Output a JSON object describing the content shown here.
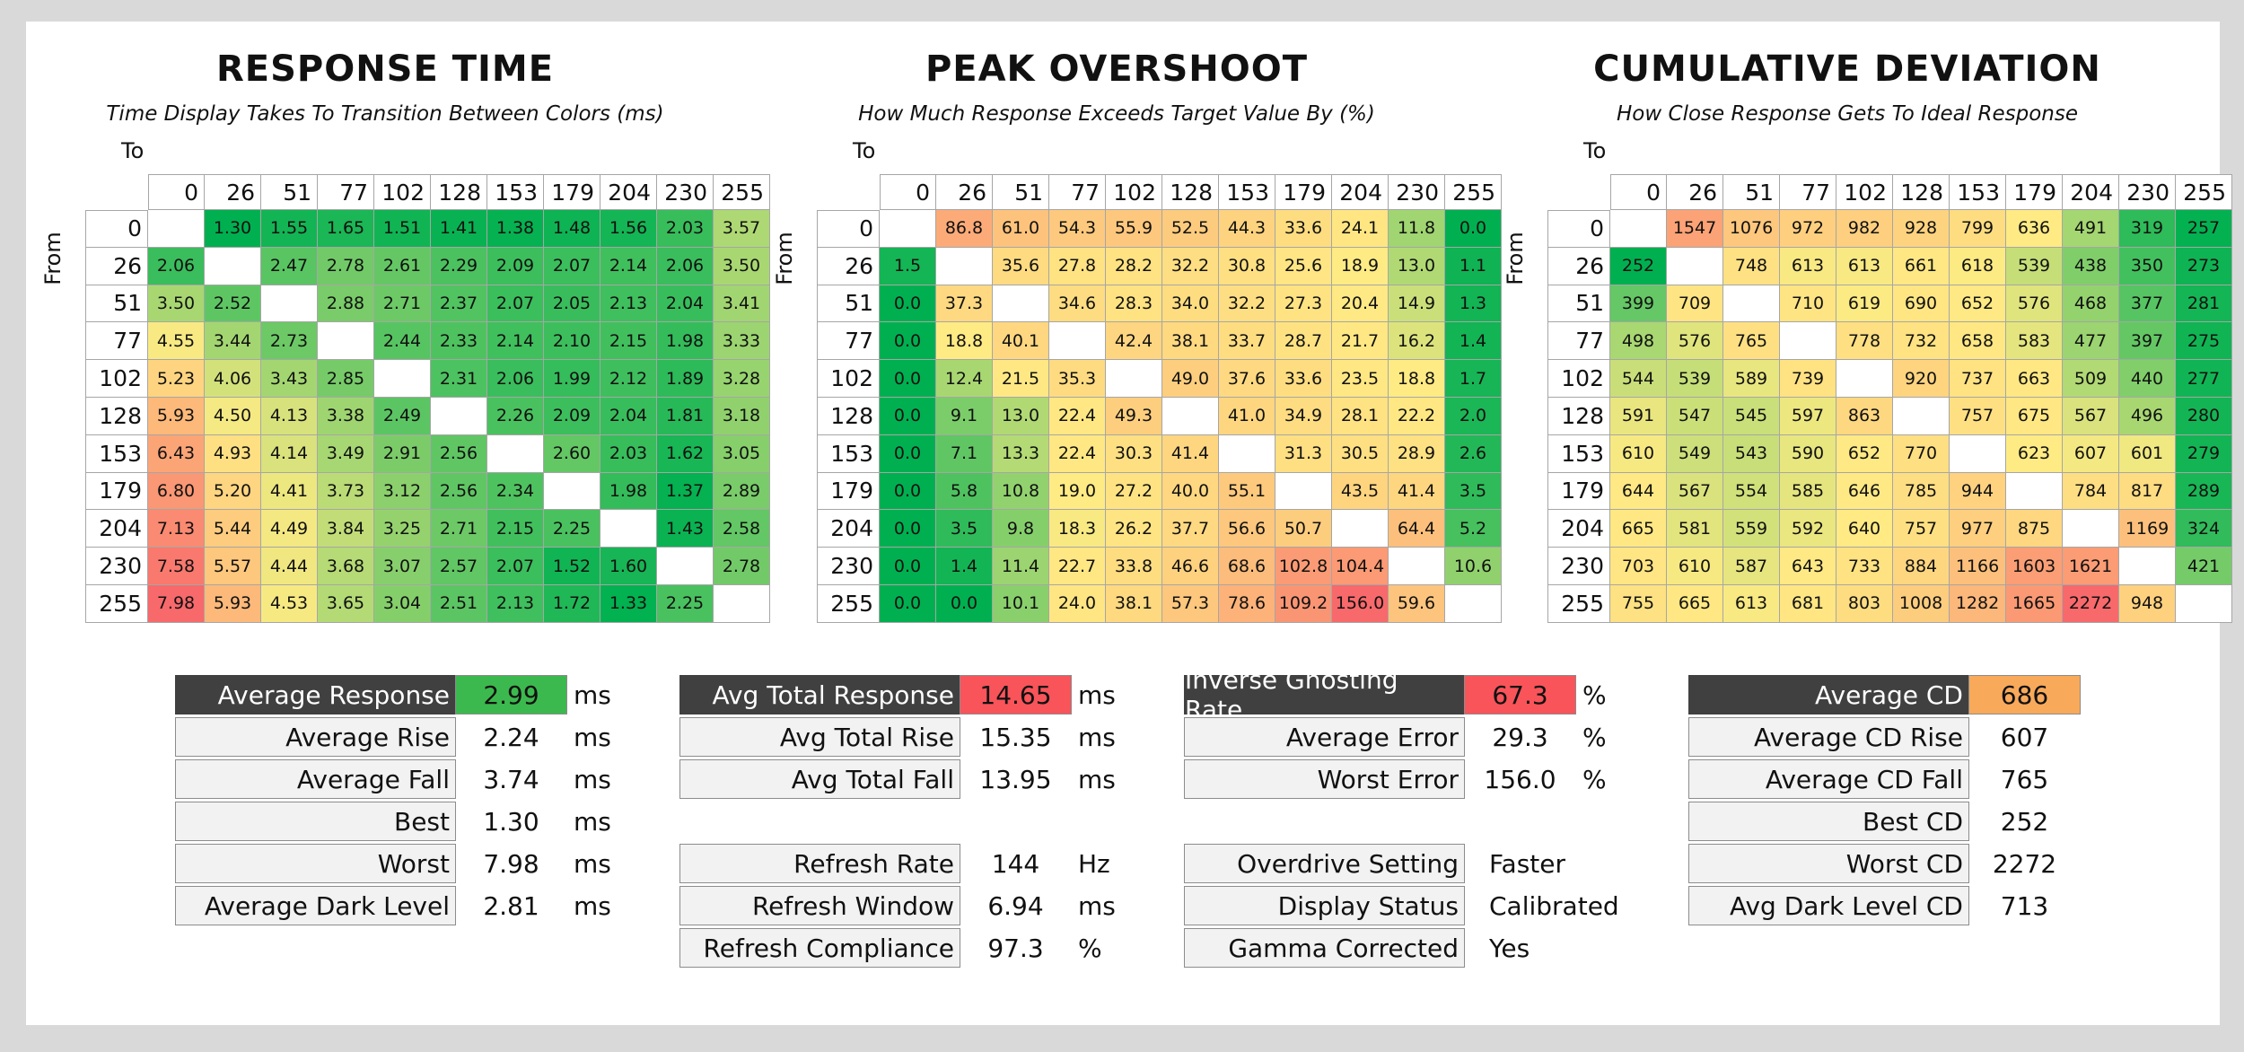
{
  "panels": [
    {
      "title": "RESPONSE TIME",
      "subtitle": "Time Display Takes To Transition Between Colors (ms)",
      "to_label": "To",
      "from_label": "From"
    },
    {
      "title": "PEAK OVERSHOOT",
      "subtitle": "How Much Response Exceeds Target Value By (%)",
      "to_label": "To",
      "from_label": "From"
    },
    {
      "title": "CUMULATIVE DEVIATION",
      "subtitle": "How Close Response Gets To Ideal Response",
      "to_label": "To",
      "from_label": "From"
    }
  ],
  "chart_data": [
    {
      "type": "heatmap",
      "title": "RESPONSE TIME",
      "subtitle": "Time Display Takes To Transition Between Colors (ms)",
      "xlabel": "To",
      "ylabel": "From",
      "x": [
        "0",
        "26",
        "51",
        "77",
        "102",
        "128",
        "153",
        "179",
        "204",
        "230",
        "255"
      ],
      "y": [
        "0",
        "26",
        "51",
        "77",
        "102",
        "128",
        "153",
        "179",
        "204",
        "230",
        "255"
      ],
      "values": [
        [
          null,
          "1.30",
          "1.55",
          "1.65",
          "1.51",
          "1.41",
          "1.38",
          "1.48",
          "1.56",
          "2.03",
          "3.57"
        ],
        [
          "2.06",
          null,
          "2.47",
          "2.78",
          "2.61",
          "2.29",
          "2.09",
          "2.07",
          "2.14",
          "2.06",
          "3.50"
        ],
        [
          "3.50",
          "2.52",
          null,
          "2.88",
          "2.71",
          "2.37",
          "2.07",
          "2.05",
          "2.13",
          "2.04",
          "3.41"
        ],
        [
          "4.55",
          "3.44",
          "2.73",
          null,
          "2.44",
          "2.33",
          "2.14",
          "2.10",
          "2.15",
          "1.98",
          "3.33"
        ],
        [
          "5.23",
          "4.06",
          "3.43",
          "2.85",
          null,
          "2.31",
          "2.06",
          "1.99",
          "2.12",
          "1.89",
          "3.28"
        ],
        [
          "5.93",
          "4.50",
          "4.13",
          "3.38",
          "2.49",
          null,
          "2.26",
          "2.09",
          "2.04",
          "1.81",
          "3.18"
        ],
        [
          "6.43",
          "4.93",
          "4.14",
          "3.49",
          "2.91",
          "2.56",
          null,
          "2.60",
          "2.03",
          "1.62",
          "3.05"
        ],
        [
          "6.80",
          "5.20",
          "4.41",
          "3.73",
          "3.12",
          "2.56",
          "2.34",
          null,
          "1.98",
          "1.37",
          "2.89"
        ],
        [
          "7.13",
          "5.44",
          "4.49",
          "3.84",
          "3.25",
          "2.71",
          "2.15",
          "2.25",
          null,
          "1.43",
          "2.58"
        ],
        [
          "7.58",
          "5.57",
          "4.44",
          "3.68",
          "3.07",
          "2.57",
          "2.07",
          "1.52",
          "1.60",
          null,
          "2.78"
        ],
        [
          "7.98",
          "5.93",
          "4.53",
          "3.65",
          "3.04",
          "2.51",
          "2.13",
          "1.72",
          "1.33",
          "2.25",
          null
        ]
      ],
      "colors": {
        "good": "#00b050",
        "mid": "#ffeb84",
        "bad": "#f8696b"
      }
    },
    {
      "type": "heatmap",
      "title": "PEAK OVERSHOOT",
      "subtitle": "How Much Response Exceeds Target Value By (%)",
      "xlabel": "To",
      "ylabel": "From",
      "x": [
        "0",
        "26",
        "51",
        "77",
        "102",
        "128",
        "153",
        "179",
        "204",
        "230",
        "255"
      ],
      "y": [
        "0",
        "26",
        "51",
        "77",
        "102",
        "128",
        "153",
        "179",
        "204",
        "230",
        "255"
      ],
      "values": [
        [
          null,
          "86.8",
          "61.0",
          "54.3",
          "55.9",
          "52.5",
          "44.3",
          "33.6",
          "24.1",
          "11.8",
          "0.0"
        ],
        [
          "1.5",
          null,
          "35.6",
          "27.8",
          "28.2",
          "32.2",
          "30.8",
          "25.6",
          "18.9",
          "13.0",
          "1.1"
        ],
        [
          "0.0",
          "37.3",
          null,
          "34.6",
          "28.3",
          "34.0",
          "32.2",
          "27.3",
          "20.4",
          "14.9",
          "1.3"
        ],
        [
          "0.0",
          "18.8",
          "40.1",
          null,
          "42.4",
          "38.1",
          "33.7",
          "28.7",
          "21.7",
          "16.2",
          "1.4"
        ],
        [
          "0.0",
          "12.4",
          "21.5",
          "35.3",
          null,
          "49.0",
          "37.6",
          "33.6",
          "23.5",
          "18.8",
          "1.7"
        ],
        [
          "0.0",
          "9.1",
          "13.0",
          "22.4",
          "49.3",
          null,
          "41.0",
          "34.9",
          "28.1",
          "22.2",
          "2.0"
        ],
        [
          "0.0",
          "7.1",
          "13.3",
          "22.4",
          "30.3",
          "41.4",
          null,
          "31.3",
          "30.5",
          "28.9",
          "2.6"
        ],
        [
          "0.0",
          "5.8",
          "10.8",
          "19.0",
          "27.2",
          "40.0",
          "55.1",
          null,
          "43.5",
          "41.4",
          "3.5"
        ],
        [
          "0.0",
          "3.5",
          "9.8",
          "18.3",
          "26.2",
          "37.7",
          "56.6",
          "50.7",
          null,
          "64.4",
          "5.2"
        ],
        [
          "0.0",
          "1.4",
          "11.4",
          "22.7",
          "33.8",
          "46.6",
          "68.6",
          "102.8",
          "104.4",
          null,
          "10.6"
        ],
        [
          "0.0",
          "0.0",
          "10.1",
          "24.0",
          "38.1",
          "57.3",
          "78.6",
          "109.2",
          "156.0",
          "59.6",
          null
        ]
      ],
      "colors": {
        "good": "#00b050",
        "mid": "#ffeb84",
        "bad": "#f8696b"
      }
    },
    {
      "type": "heatmap",
      "title": "CUMULATIVE DEVIATION",
      "subtitle": "How Close Response Gets To Ideal Response",
      "xlabel": "To",
      "ylabel": "From",
      "x": [
        "0",
        "26",
        "51",
        "77",
        "102",
        "128",
        "153",
        "179",
        "204",
        "230",
        "255"
      ],
      "y": [
        "0",
        "26",
        "51",
        "77",
        "102",
        "128",
        "153",
        "179",
        "204",
        "230",
        "255"
      ],
      "values": [
        [
          null,
          "1547",
          "1076",
          "972",
          "982",
          "928",
          "799",
          "636",
          "491",
          "319",
          "257"
        ],
        [
          "252",
          null,
          "748",
          "613",
          "613",
          "661",
          "618",
          "539",
          "438",
          "350",
          "273"
        ],
        [
          "399",
          "709",
          null,
          "710",
          "619",
          "690",
          "652",
          "576",
          "468",
          "377",
          "281"
        ],
        [
          "498",
          "576",
          "765",
          null,
          "778",
          "732",
          "658",
          "583",
          "477",
          "397",
          "275"
        ],
        [
          "544",
          "539",
          "589",
          "739",
          null,
          "920",
          "737",
          "663",
          "509",
          "440",
          "277"
        ],
        [
          "591",
          "547",
          "545",
          "597",
          "863",
          null,
          "757",
          "675",
          "567",
          "496",
          "280"
        ],
        [
          "610",
          "549",
          "543",
          "590",
          "652",
          "770",
          null,
          "623",
          "607",
          "601",
          "279"
        ],
        [
          "644",
          "567",
          "554",
          "585",
          "646",
          "785",
          "944",
          null,
          "784",
          "817",
          "289"
        ],
        [
          "665",
          "581",
          "559",
          "592",
          "640",
          "757",
          "977",
          "875",
          null,
          "1169",
          "324"
        ],
        [
          "703",
          "610",
          "587",
          "643",
          "733",
          "884",
          "1166",
          "1603",
          "1621",
          null,
          "421"
        ],
        [
          "755",
          "665",
          "613",
          "681",
          "803",
          "1008",
          "1282",
          "1665",
          "2272",
          "948",
          null
        ]
      ],
      "colors": {
        "good": "#00b050",
        "mid": "#ffeb84",
        "bad": "#f8696b"
      }
    }
  ],
  "stats": {
    "response": {
      "average_response": {
        "label": "Average Response",
        "value": "2.99",
        "unit": "ms",
        "color": "#3cb94e"
      },
      "average_rise": {
        "label": "Average Rise",
        "value": "2.24",
        "unit": "ms"
      },
      "average_fall": {
        "label": "Average Fall",
        "value": "3.74",
        "unit": "ms"
      },
      "best": {
        "label": "Best",
        "value": "1.30",
        "unit": "ms"
      },
      "worst": {
        "label": "Worst",
        "value": "7.98",
        "unit": "ms"
      },
      "average_dark_level": {
        "label": "Average Dark Level",
        "value": "2.81",
        "unit": "ms"
      }
    },
    "total": {
      "avg_total_response": {
        "label": "Avg Total Response",
        "value": "14.65",
        "unit": "ms",
        "color": "#f8545a"
      },
      "avg_total_rise": {
        "label": "Avg Total Rise",
        "value": "15.35",
        "unit": "ms"
      },
      "avg_total_fall": {
        "label": "Avg Total Fall",
        "value": "13.95",
        "unit": "ms"
      },
      "refresh_rate": {
        "label": "Refresh Rate",
        "value": "144",
        "unit": "Hz"
      },
      "refresh_window": {
        "label": "Refresh Window",
        "value": "6.94",
        "unit": "ms"
      },
      "refresh_compliance": {
        "label": "Refresh Compliance",
        "value": "97.3",
        "unit": "%"
      }
    },
    "overshoot": {
      "inverse_ghosting_rate": {
        "label": "Inverse Ghosting Rate",
        "value": "67.3",
        "unit": "%",
        "color": "#f8545a"
      },
      "average_error": {
        "label": "Average Error",
        "value": "29.3",
        "unit": "%"
      },
      "worst_error": {
        "label": "Worst Error",
        "value": "156.0",
        "unit": "%"
      },
      "overdrive_setting": {
        "label": "Overdrive Setting",
        "value": "Faster"
      },
      "display_status": {
        "label": "Display Status",
        "value": "Calibrated"
      },
      "gamma_corrected": {
        "label": "Gamma Corrected",
        "value": "Yes"
      }
    },
    "cd": {
      "average_cd": {
        "label": "Average CD",
        "value": "686",
        "color": "#f8a95a"
      },
      "average_cd_rise": {
        "label": "Average CD Rise",
        "value": "607"
      },
      "average_cd_fall": {
        "label": "Average CD Fall",
        "value": "765"
      },
      "best_cd": {
        "label": "Best CD",
        "value": "252"
      },
      "worst_cd": {
        "label": "Worst CD",
        "value": "2272"
      },
      "avg_dark_level_cd": {
        "label": "Avg Dark Level CD",
        "value": "713"
      }
    }
  }
}
